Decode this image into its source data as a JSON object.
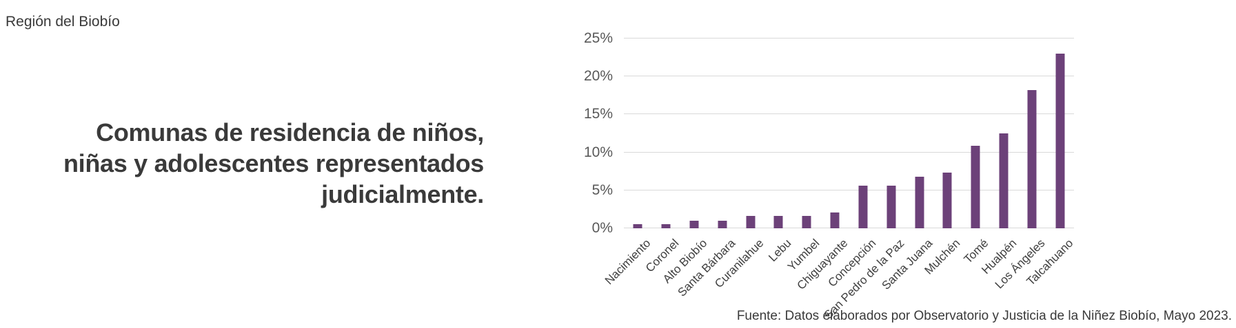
{
  "page": {
    "region_label": "Región del Biobío",
    "title_lines": [
      "Comunas de residencia de niños,",
      "niñas y adolescentes representados",
      "judicialmente."
    ],
    "source_note": "Fuente: Datos elaborados por Observatorio y Justicia de la Niñez Biobío, Mayo 2023."
  },
  "colors": {
    "bar": "#6c4179",
    "gridline": "#d9d9d9",
    "axis_text": "#595959",
    "label_text": "#404040",
    "title_text": "#3a3a3a"
  },
  "chart_data": {
    "type": "bar",
    "title": "Comunas de residencia de niños, niñas y adolescentes representados judicialmente.",
    "xlabel": "",
    "ylabel": "",
    "categories": [
      "Nacimiento",
      "Coronel",
      "Alto Biobío",
      "Santa Bárbara",
      "Curanilahue",
      "Lebu",
      "Yumbel",
      "Chiguayante",
      "Concepción",
      "San Pedro de la Paz",
      "Santa Juana",
      "Mulchén",
      "Tomé",
      "Hualpén",
      "Los Ángeles",
      "Talcahuano"
    ],
    "values": [
      0.5,
      0.5,
      1.0,
      1.0,
      1.6,
      1.6,
      1.6,
      2.1,
      5.6,
      5.6,
      6.8,
      7.3,
      10.9,
      12.5,
      18.2,
      23.0
    ],
    "value_unit": "%",
    "ylim": [
      0,
      25
    ],
    "y_tick_values": [
      0,
      5,
      10,
      15,
      20,
      25
    ],
    "y_tick_labels": [
      "0%",
      "5%",
      "10%",
      "15%",
      "20%",
      "25%"
    ],
    "grid": "horizontal",
    "legend": "none",
    "x_label_rotation_deg": 45
  }
}
